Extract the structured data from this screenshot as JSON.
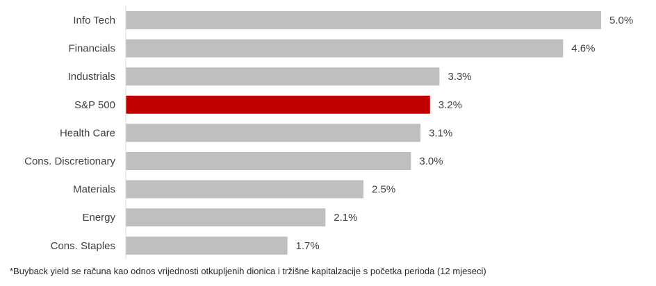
{
  "chart_data": {
    "type": "bar",
    "orientation": "horizontal",
    "categories": [
      "Info Tech",
      "Financials",
      "Industrials",
      "S&P 500",
      "Health Care",
      "Cons. Discretionary",
      "Materials",
      "Energy",
      "Cons. Staples"
    ],
    "values": [
      5.0,
      4.6,
      3.3,
      3.2,
      3.1,
      3.0,
      2.5,
      2.1,
      1.7
    ],
    "value_labels": [
      "5.0%",
      "4.6%",
      "3.3%",
      "3.2%",
      "3.1%",
      "3.0%",
      "2.5%",
      "2.1%",
      "1.7%"
    ],
    "xlim": [
      0,
      5.0
    ],
    "grid": false,
    "colors": {
      "default_bar": "#bfbfbf",
      "highlight_bar": "#c00000",
      "text": "#404040"
    },
    "highlight_category": "S&P 500",
    "title": "",
    "xlabel": "",
    "ylabel": ""
  },
  "footnote": "*Buyback yield se računa kao odnos vrijednosti otkupljenih dionica i tržišne kapitalzacije s početka perioda (12 mjeseci)"
}
